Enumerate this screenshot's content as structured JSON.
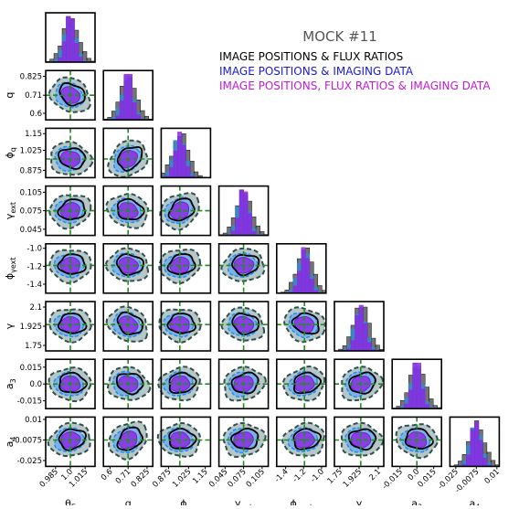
{
  "chart_data": {
    "type": "corner",
    "title": "MOCK #11",
    "legend": [
      {
        "label": "IMAGE POSITIONS & FLUX RATIOS",
        "color": "#000000"
      },
      {
        "label": "IMAGE POSITIONS & IMAGING DATA",
        "color": "#1a1ad6"
      },
      {
        "label": "IMAGE POSITIONS, FLUX RATIOS & IMAGING DATA",
        "color": "#c21ad6"
      }
    ],
    "legend_placement": "top-right",
    "parameters": [
      {
        "name": "thetaE",
        "label_main": "θ",
        "label_sub": "E",
        "truth": 1.0,
        "range": [
          0.975,
          1.025
        ],
        "ticks": [
          "0.985",
          "1.0",
          "1.015"
        ]
      },
      {
        "name": "q",
        "label_main": "q",
        "label_sub": "",
        "truth": 0.71,
        "range": [
          0.56,
          0.86
        ],
        "ticks": [
          "0.6",
          "0.71",
          "0.825"
        ]
      },
      {
        "name": "phi_q",
        "label_main": "ϕ",
        "label_sub": "q",
        "truth": 0.96,
        "range": [
          0.82,
          1.19
        ],
        "ticks": [
          "0.875",
          "1.025",
          "1.15"
        ]
      },
      {
        "name": "gamma_ext",
        "label_main": "γ",
        "label_sub": "ext",
        "truth": 0.075,
        "range": [
          0.035,
          0.115
        ],
        "ticks": [
          "0.045",
          "0.075",
          "0.105"
        ]
      },
      {
        "name": "phi_gext",
        "label_main": "ϕ",
        "label_sub": "γext",
        "truth": -1.19,
        "range": [
          -1.5,
          -0.95
        ],
        "ticks": [
          "-1.4",
          "-1.2",
          "-1.0"
        ]
      },
      {
        "name": "gamma",
        "label_main": "γ",
        "label_sub": "",
        "truth": 1.94,
        "range": [
          1.7,
          2.15
        ],
        "ticks": [
          "1.75",
          "1.925",
          "2.1"
        ]
      },
      {
        "name": "a3",
        "label_main": "a",
        "label_sub": "3",
        "truth": 0.0,
        "range": [
          -0.022,
          0.022
        ],
        "ticks": [
          "-0.015",
          "0.0",
          "0.015"
        ]
      },
      {
        "name": "a4",
        "label_main": "a",
        "label_sub": "4",
        "truth": -0.0075,
        "range": [
          -0.03,
          0.012
        ],
        "ticks": [
          "-0.025",
          "-0.0075",
          "0.01"
        ]
      }
    ],
    "series_colors": {
      "flux": "#000000",
      "imaging": "#1f8ff0",
      "combined": "#8a2be2",
      "truth_line": "#228b22"
    },
    "grid": false
  }
}
